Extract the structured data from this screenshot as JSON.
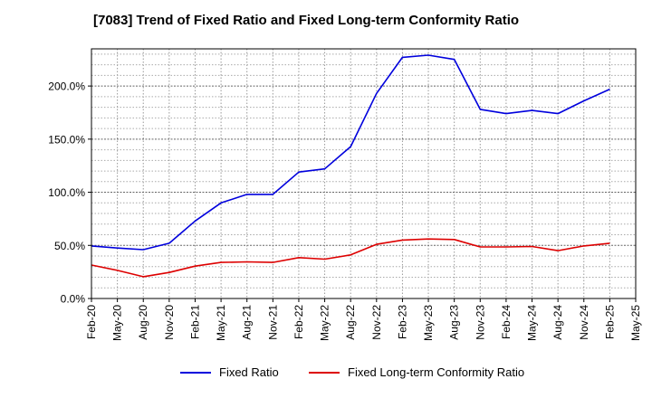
{
  "chart_data": {
    "type": "line",
    "title": "[7083]  Trend of Fixed Ratio and Fixed Long-term Conformity Ratio",
    "xlabel": "",
    "ylabel": "",
    "x": [
      "Feb-20",
      "May-20",
      "Aug-20",
      "Nov-20",
      "Feb-21",
      "May-21",
      "Aug-21",
      "Nov-21",
      "Feb-22",
      "May-22",
      "Aug-22",
      "Nov-22",
      "Feb-23",
      "May-23",
      "Aug-23",
      "Nov-23",
      "Feb-24",
      "May-24",
      "Aug-24",
      "Nov-24",
      "Feb-25",
      "May-25"
    ],
    "ylim": [
      0,
      235
    ],
    "yticks": [
      0,
      50,
      100,
      150,
      200
    ],
    "ytick_labels": [
      "0.0%",
      "50.0%",
      "100.0%",
      "150.0%",
      "200.0%"
    ],
    "grid": true,
    "legend_position": "bottom",
    "series": [
      {
        "name": "Fixed Ratio",
        "color": "#0000dd",
        "values": [
          49.5,
          47.5,
          46,
          52,
          73,
          90,
          98,
          98,
          119,
          122,
          143,
          193,
          227,
          229,
          225,
          178,
          174,
          177,
          174,
          186,
          197,
          null
        ]
      },
      {
        "name": "Fixed Long-term Conformity Ratio",
        "color": "#dd0000",
        "values": [
          31.5,
          26.5,
          20.5,
          24.5,
          30.5,
          34,
          34.5,
          34,
          38.5,
          37,
          41,
          51,
          55,
          56,
          55.5,
          48.5,
          48.5,
          49,
          45,
          49.5,
          52,
          null
        ]
      }
    ]
  }
}
